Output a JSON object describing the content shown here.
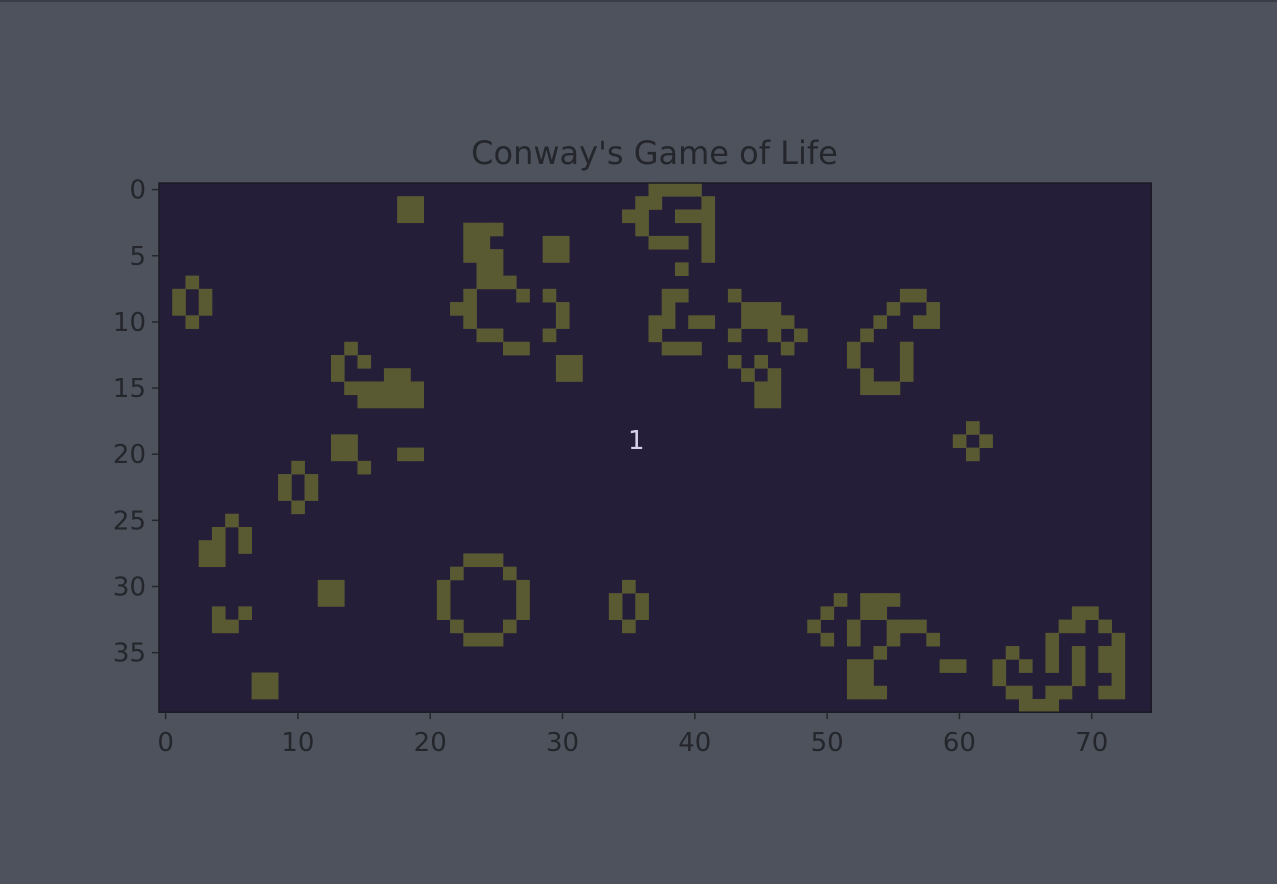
{
  "title": "Conway's Game of Life",
  "generation_label": "1",
  "colors": {
    "page_bg": "#4e525c",
    "board_bg": "#251e38",
    "cell": "#5a5a32",
    "text": "#24262c",
    "label": "#d6d2ec"
  },
  "grid": {
    "cols": 75,
    "rows": 40
  },
  "x_ticks": [
    0,
    10,
    20,
    30,
    40,
    50,
    60,
    70
  ],
  "y_ticks": [
    0,
    5,
    10,
    15,
    20,
    25,
    30,
    35
  ],
  "live_cells": [
    [
      18,
      1
    ],
    [
      19,
      1
    ],
    [
      18,
      2
    ],
    [
      19,
      2
    ],
    [
      37,
      0
    ],
    [
      38,
      0
    ],
    [
      39,
      0
    ],
    [
      40,
      0
    ],
    [
      36,
      1
    ],
    [
      37,
      1
    ],
    [
      41,
      1
    ],
    [
      35,
      2
    ],
    [
      36,
      2
    ],
    [
      39,
      2
    ],
    [
      40,
      2
    ],
    [
      41,
      2
    ],
    [
      36,
      3
    ],
    [
      41,
      3
    ],
    [
      37,
      4
    ],
    [
      38,
      4
    ],
    [
      39,
      4
    ],
    [
      41,
      4
    ],
    [
      41,
      5
    ],
    [
      39,
      6
    ],
    [
      38,
      8
    ],
    [
      39,
      8
    ],
    [
      38,
      9
    ],
    [
      37,
      10
    ],
    [
      38,
      10
    ],
    [
      40,
      10
    ],
    [
      41,
      10
    ],
    [
      37,
      11
    ],
    [
      38,
      12
    ],
    [
      39,
      12
    ],
    [
      40,
      12
    ],
    [
      23,
      3
    ],
    [
      24,
      3
    ],
    [
      25,
      3
    ],
    [
      23,
      4
    ],
    [
      24,
      4
    ],
    [
      23,
      5
    ],
    [
      24,
      5
    ],
    [
      25,
      5
    ],
    [
      24,
      6
    ],
    [
      25,
      6
    ],
    [
      24,
      7
    ],
    [
      25,
      7
    ],
    [
      26,
      7
    ],
    [
      23,
      8
    ],
    [
      27,
      8
    ],
    [
      29,
      8
    ],
    [
      22,
      9
    ],
    [
      23,
      9
    ],
    [
      30,
      9
    ],
    [
      23,
      10
    ],
    [
      30,
      10
    ],
    [
      24,
      11
    ],
    [
      25,
      11
    ],
    [
      29,
      11
    ],
    [
      26,
      12
    ],
    [
      27,
      12
    ],
    [
      29,
      4
    ],
    [
      30,
      4
    ],
    [
      29,
      5
    ],
    [
      30,
      5
    ],
    [
      30,
      13
    ],
    [
      31,
      13
    ],
    [
      30,
      14
    ],
    [
      31,
      14
    ],
    [
      2,
      7
    ],
    [
      1,
      8
    ],
    [
      3,
      8
    ],
    [
      1,
      9
    ],
    [
      3,
      9
    ],
    [
      2,
      10
    ],
    [
      14,
      12
    ],
    [
      13,
      13
    ],
    [
      15,
      13
    ],
    [
      13,
      14
    ],
    [
      17,
      14
    ],
    [
      18,
      14
    ],
    [
      14,
      15
    ],
    [
      15,
      15
    ],
    [
      16,
      15
    ],
    [
      17,
      15
    ],
    [
      18,
      15
    ],
    [
      19,
      15
    ],
    [
      15,
      16
    ],
    [
      16,
      16
    ],
    [
      17,
      16
    ],
    [
      18,
      16
    ],
    [
      19,
      16
    ],
    [
      13,
      19
    ],
    [
      14,
      19
    ],
    [
      13,
      20
    ],
    [
      14,
      20
    ],
    [
      15,
      21
    ],
    [
      18,
      20
    ],
    [
      19,
      20
    ],
    [
      10,
      21
    ],
    [
      9,
      22
    ],
    [
      11,
      22
    ],
    [
      9,
      23
    ],
    [
      11,
      23
    ],
    [
      10,
      24
    ],
    [
      5,
      25
    ],
    [
      4,
      26
    ],
    [
      6,
      26
    ],
    [
      3,
      27
    ],
    [
      4,
      27
    ],
    [
      6,
      27
    ],
    [
      3,
      28
    ],
    [
      4,
      28
    ],
    [
      12,
      30
    ],
    [
      13,
      30
    ],
    [
      12,
      31
    ],
    [
      13,
      31
    ],
    [
      4,
      32
    ],
    [
      6,
      32
    ],
    [
      4,
      33
    ],
    [
      5,
      33
    ],
    [
      7,
      37
    ],
    [
      8,
      37
    ],
    [
      7,
      38
    ],
    [
      8,
      38
    ],
    [
      23,
      28
    ],
    [
      24,
      28
    ],
    [
      25,
      28
    ],
    [
      22,
      29
    ],
    [
      26,
      29
    ],
    [
      21,
      30
    ],
    [
      27,
      30
    ],
    [
      21,
      31
    ],
    [
      27,
      31
    ],
    [
      21,
      32
    ],
    [
      27,
      32
    ],
    [
      22,
      33
    ],
    [
      26,
      33
    ],
    [
      23,
      34
    ],
    [
      24,
      34
    ],
    [
      25,
      34
    ],
    [
      35,
      30
    ],
    [
      34,
      31
    ],
    [
      36,
      31
    ],
    [
      34,
      32
    ],
    [
      36,
      32
    ],
    [
      35,
      33
    ],
    [
      43,
      8
    ],
    [
      44,
      9
    ],
    [
      45,
      9
    ],
    [
      46,
      9
    ],
    [
      44,
      10
    ],
    [
      45,
      10
    ],
    [
      46,
      10
    ],
    [
      47,
      10
    ],
    [
      43,
      11
    ],
    [
      46,
      11
    ],
    [
      48,
      11
    ],
    [
      47,
      12
    ],
    [
      43,
      13
    ],
    [
      45,
      13
    ],
    [
      44,
      14
    ],
    [
      46,
      14
    ],
    [
      45,
      15
    ],
    [
      46,
      15
    ],
    [
      45,
      16
    ],
    [
      46,
      16
    ],
    [
      56,
      8
    ],
    [
      57,
      8
    ],
    [
      55,
      9
    ],
    [
      58,
      9
    ],
    [
      54,
      10
    ],
    [
      57,
      10
    ],
    [
      58,
      10
    ],
    [
      53,
      11
    ],
    [
      52,
      12
    ],
    [
      56,
      12
    ],
    [
      52,
      13
    ],
    [
      56,
      13
    ],
    [
      53,
      14
    ],
    [
      56,
      14
    ],
    [
      53,
      15
    ],
    [
      54,
      15
    ],
    [
      55,
      15
    ],
    [
      61,
      18
    ],
    [
      60,
      19
    ],
    [
      62,
      19
    ],
    [
      61,
      20
    ],
    [
      51,
      31
    ],
    [
      53,
      31
    ],
    [
      54,
      31
    ],
    [
      55,
      31
    ],
    [
      50,
      32
    ],
    [
      53,
      32
    ],
    [
      54,
      32
    ],
    [
      49,
      33
    ],
    [
      52,
      33
    ],
    [
      55,
      33
    ],
    [
      56,
      33
    ],
    [
      57,
      33
    ],
    [
      50,
      34
    ],
    [
      52,
      34
    ],
    [
      55,
      34
    ],
    [
      58,
      34
    ],
    [
      54,
      35
    ],
    [
      52,
      36
    ],
    [
      53,
      36
    ],
    [
      59,
      36
    ],
    [
      60,
      36
    ],
    [
      52,
      37
    ],
    [
      53,
      37
    ],
    [
      52,
      38
    ],
    [
      53,
      38
    ],
    [
      54,
      38
    ],
    [
      69,
      32
    ],
    [
      70,
      32
    ],
    [
      68,
      33
    ],
    [
      69,
      33
    ],
    [
      71,
      33
    ],
    [
      67,
      34
    ],
    [
      72,
      34
    ],
    [
      64,
      35
    ],
    [
      67,
      35
    ],
    [
      69,
      35
    ],
    [
      71,
      35
    ],
    [
      72,
      35
    ],
    [
      63,
      36
    ],
    [
      65,
      36
    ],
    [
      67,
      36
    ],
    [
      69,
      36
    ],
    [
      71,
      36
    ],
    [
      72,
      36
    ],
    [
      63,
      37
    ],
    [
      69,
      37
    ],
    [
      72,
      37
    ],
    [
      64,
      38
    ],
    [
      65,
      38
    ],
    [
      67,
      38
    ],
    [
      68,
      38
    ],
    [
      71,
      38
    ],
    [
      72,
      38
    ],
    [
      65,
      39
    ],
    [
      66,
      39
    ],
    [
      67,
      39
    ]
  ]
}
